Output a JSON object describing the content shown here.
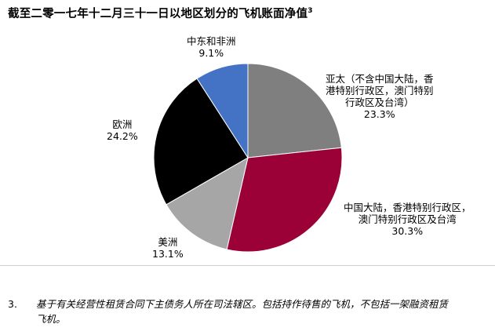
{
  "title": "截至二零一七年十二月三十一日以地区划分的飞机账面净值",
  "title_note_marker": "3",
  "chart_data": {
    "type": "pie",
    "unit": "%",
    "slices": [
      {
        "label": "亚太（不含中国大陆，香港特别行政区，澳门特别行政区及台湾）",
        "label_lines": [
          "亚太（不含中国大陆，香",
          "港特别行政区，澳门特别",
          "行政区及台湾）"
        ],
        "value": 23.3,
        "value_text": "23.3%",
        "color": "#7f7f7f"
      },
      {
        "label": "中国大陆，香港特别行政区，澳门特别行政区及台湾",
        "label_lines": [
          "中国大陆，香港特别行政区，",
          "澳门特别行政区及台湾"
        ],
        "value": 30.3,
        "value_text": "30.3%",
        "color": "#9b0036"
      },
      {
        "label": "美洲",
        "label_lines": [
          "美洲"
        ],
        "value": 13.1,
        "value_text": "13.1%",
        "color": "#a6a6a6"
      },
      {
        "label": "欧洲",
        "label_lines": [
          "欧洲"
        ],
        "value": 24.2,
        "value_text": "24.2%",
        "color": "#000000"
      },
      {
        "label": "中东和非洲",
        "label_lines": [
          "中东和非洲"
        ],
        "value": 9.1,
        "value_text": "9.1%",
        "color": "#4472c4"
      }
    ]
  },
  "footnote": {
    "number": "3.",
    "line1": "基于有关经营性租赁合同下主债务人所在司法辖区。包括持作待售的飞机，不包括一架融资租赁",
    "line2": "飞机。"
  }
}
